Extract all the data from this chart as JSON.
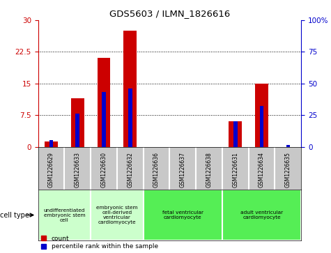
{
  "title": "GDS5603 / ILMN_1826616",
  "samples": [
    "GSM1226629",
    "GSM1226633",
    "GSM1226630",
    "GSM1226632",
    "GSM1226636",
    "GSM1226637",
    "GSM1226638",
    "GSM1226631",
    "GSM1226634",
    "GSM1226635"
  ],
  "counts": [
    1.2,
    11.5,
    21.0,
    27.5,
    0.0,
    0.0,
    0.0,
    6.0,
    15.0,
    0.0
  ],
  "percentiles": [
    5.0,
    26.0,
    43.0,
    46.0,
    0.0,
    0.0,
    0.0,
    20.0,
    32.0,
    1.5
  ],
  "ylim_left": [
    0,
    30
  ],
  "ylim_right": [
    0,
    100
  ],
  "yticks_left": [
    0,
    7.5,
    15,
    22.5,
    30
  ],
  "ytick_labels_left": [
    "0",
    "7.5",
    "15",
    "22.5",
    "30"
  ],
  "yticks_right": [
    0,
    25,
    50,
    75,
    100
  ],
  "ytick_labels_right": [
    "0",
    "25",
    "50",
    "75",
    "100%"
  ],
  "bar_color": "#cc0000",
  "percentile_color": "#0000cc",
  "cell_types": [
    {
      "label": "undifferentiated\nembryonic stem\ncell",
      "start": 0,
      "end": 2,
      "color": "#ccffcc"
    },
    {
      "label": "embryonic stem\ncell-derived\nventricular\ncardiomyocyte",
      "start": 2,
      "end": 4,
      "color": "#ccffcc"
    },
    {
      "label": "fetal ventricular\ncardiomyocyte",
      "start": 4,
      "end": 7,
      "color": "#55ee55"
    },
    {
      "label": "adult ventricular\ncardiomyocyte",
      "start": 7,
      "end": 10,
      "color": "#55ee55"
    }
  ],
  "cell_type_label": "cell type",
  "legend_count_label": "count",
  "legend_percentile_label": "percentile rank within the sample",
  "bg_color": "#ffffff",
  "tick_bg_color": "#c8c8c8"
}
